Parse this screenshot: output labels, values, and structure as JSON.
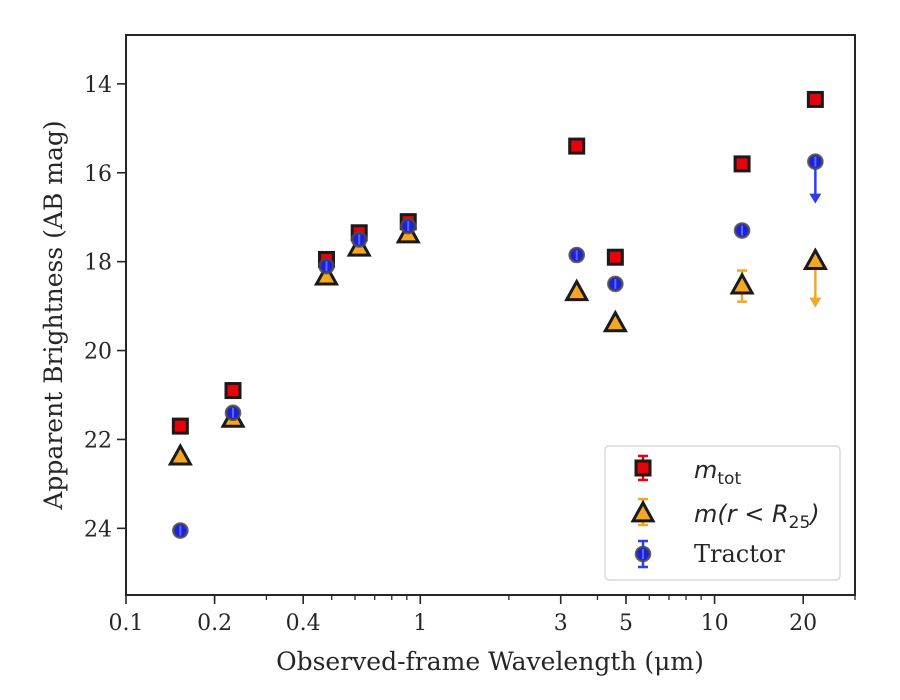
{
  "chart_data": {
    "type": "scatter",
    "xlabel": "Observed-frame Wavelength (μm)",
    "ylabel": "Apparent Brightness (AB mag)",
    "xscale": "log",
    "xlim": [
      0.1,
      30
    ],
    "ylim": [
      25.5,
      12.9
    ],
    "y_inverted": true,
    "grid": false,
    "legend_position": "lower right",
    "x_tick_labels": [
      "0.1",
      "0.2",
      "0.4",
      "1",
      "3",
      "5",
      "10",
      "20"
    ],
    "y_tick_labels": [
      "14",
      "16",
      "18",
      "20",
      "22",
      "24"
    ],
    "series": [
      {
        "name": "m_tot",
        "legend": {
          "italic": "m",
          "sub": "tot"
        },
        "marker": "square",
        "color": "#e8000b",
        "errcolor": "#e8000b",
        "points": [
          {
            "x": 0.153,
            "y": 21.7
          },
          {
            "x": 0.231,
            "y": 20.9
          },
          {
            "x": 0.48,
            "y": 17.95
          },
          {
            "x": 0.62,
            "y": 17.35
          },
          {
            "x": 0.91,
            "y": 17.1
          },
          {
            "x": 3.4,
            "y": 15.4
          },
          {
            "x": 4.6,
            "y": 17.9
          },
          {
            "x": 12.4,
            "y": 15.8
          },
          {
            "x": 22.0,
            "y": 14.35
          }
        ]
      },
      {
        "name": "m(r < R25)",
        "legend": {
          "pre": "m(r < R",
          "sub": "25",
          "post": ")"
        },
        "marker": "triangle",
        "color": "#f5a623",
        "errcolor": "#f5a623",
        "points": [
          {
            "x": 0.153,
            "y": 22.4
          },
          {
            "x": 0.231,
            "y": 21.55
          },
          {
            "x": 0.48,
            "y": 18.35
          },
          {
            "x": 0.62,
            "y": 17.7
          },
          {
            "x": 0.91,
            "y": 17.4
          },
          {
            "x": 3.4,
            "y": 18.7
          },
          {
            "x": 4.6,
            "y": 19.4
          },
          {
            "x": 12.4,
            "y": 18.55,
            "err": 0.35
          },
          {
            "x": 22.0,
            "y": 18.0,
            "upper_limit": true
          }
        ]
      },
      {
        "name": "Tractor",
        "marker": "circle",
        "color": "#1f1fe0",
        "errcolor": "#2c3cf0",
        "points": [
          {
            "x": 0.153,
            "y": 24.05
          },
          {
            "x": 0.231,
            "y": 21.4
          },
          {
            "x": 0.48,
            "y": 18.1
          },
          {
            "x": 0.62,
            "y": 17.5
          },
          {
            "x": 0.91,
            "y": 17.2
          },
          {
            "x": 3.4,
            "y": 17.85
          },
          {
            "x": 4.6,
            "y": 18.5
          },
          {
            "x": 12.4,
            "y": 17.3
          },
          {
            "x": 22.0,
            "y": 15.75,
            "upper_limit": true
          }
        ]
      }
    ]
  }
}
